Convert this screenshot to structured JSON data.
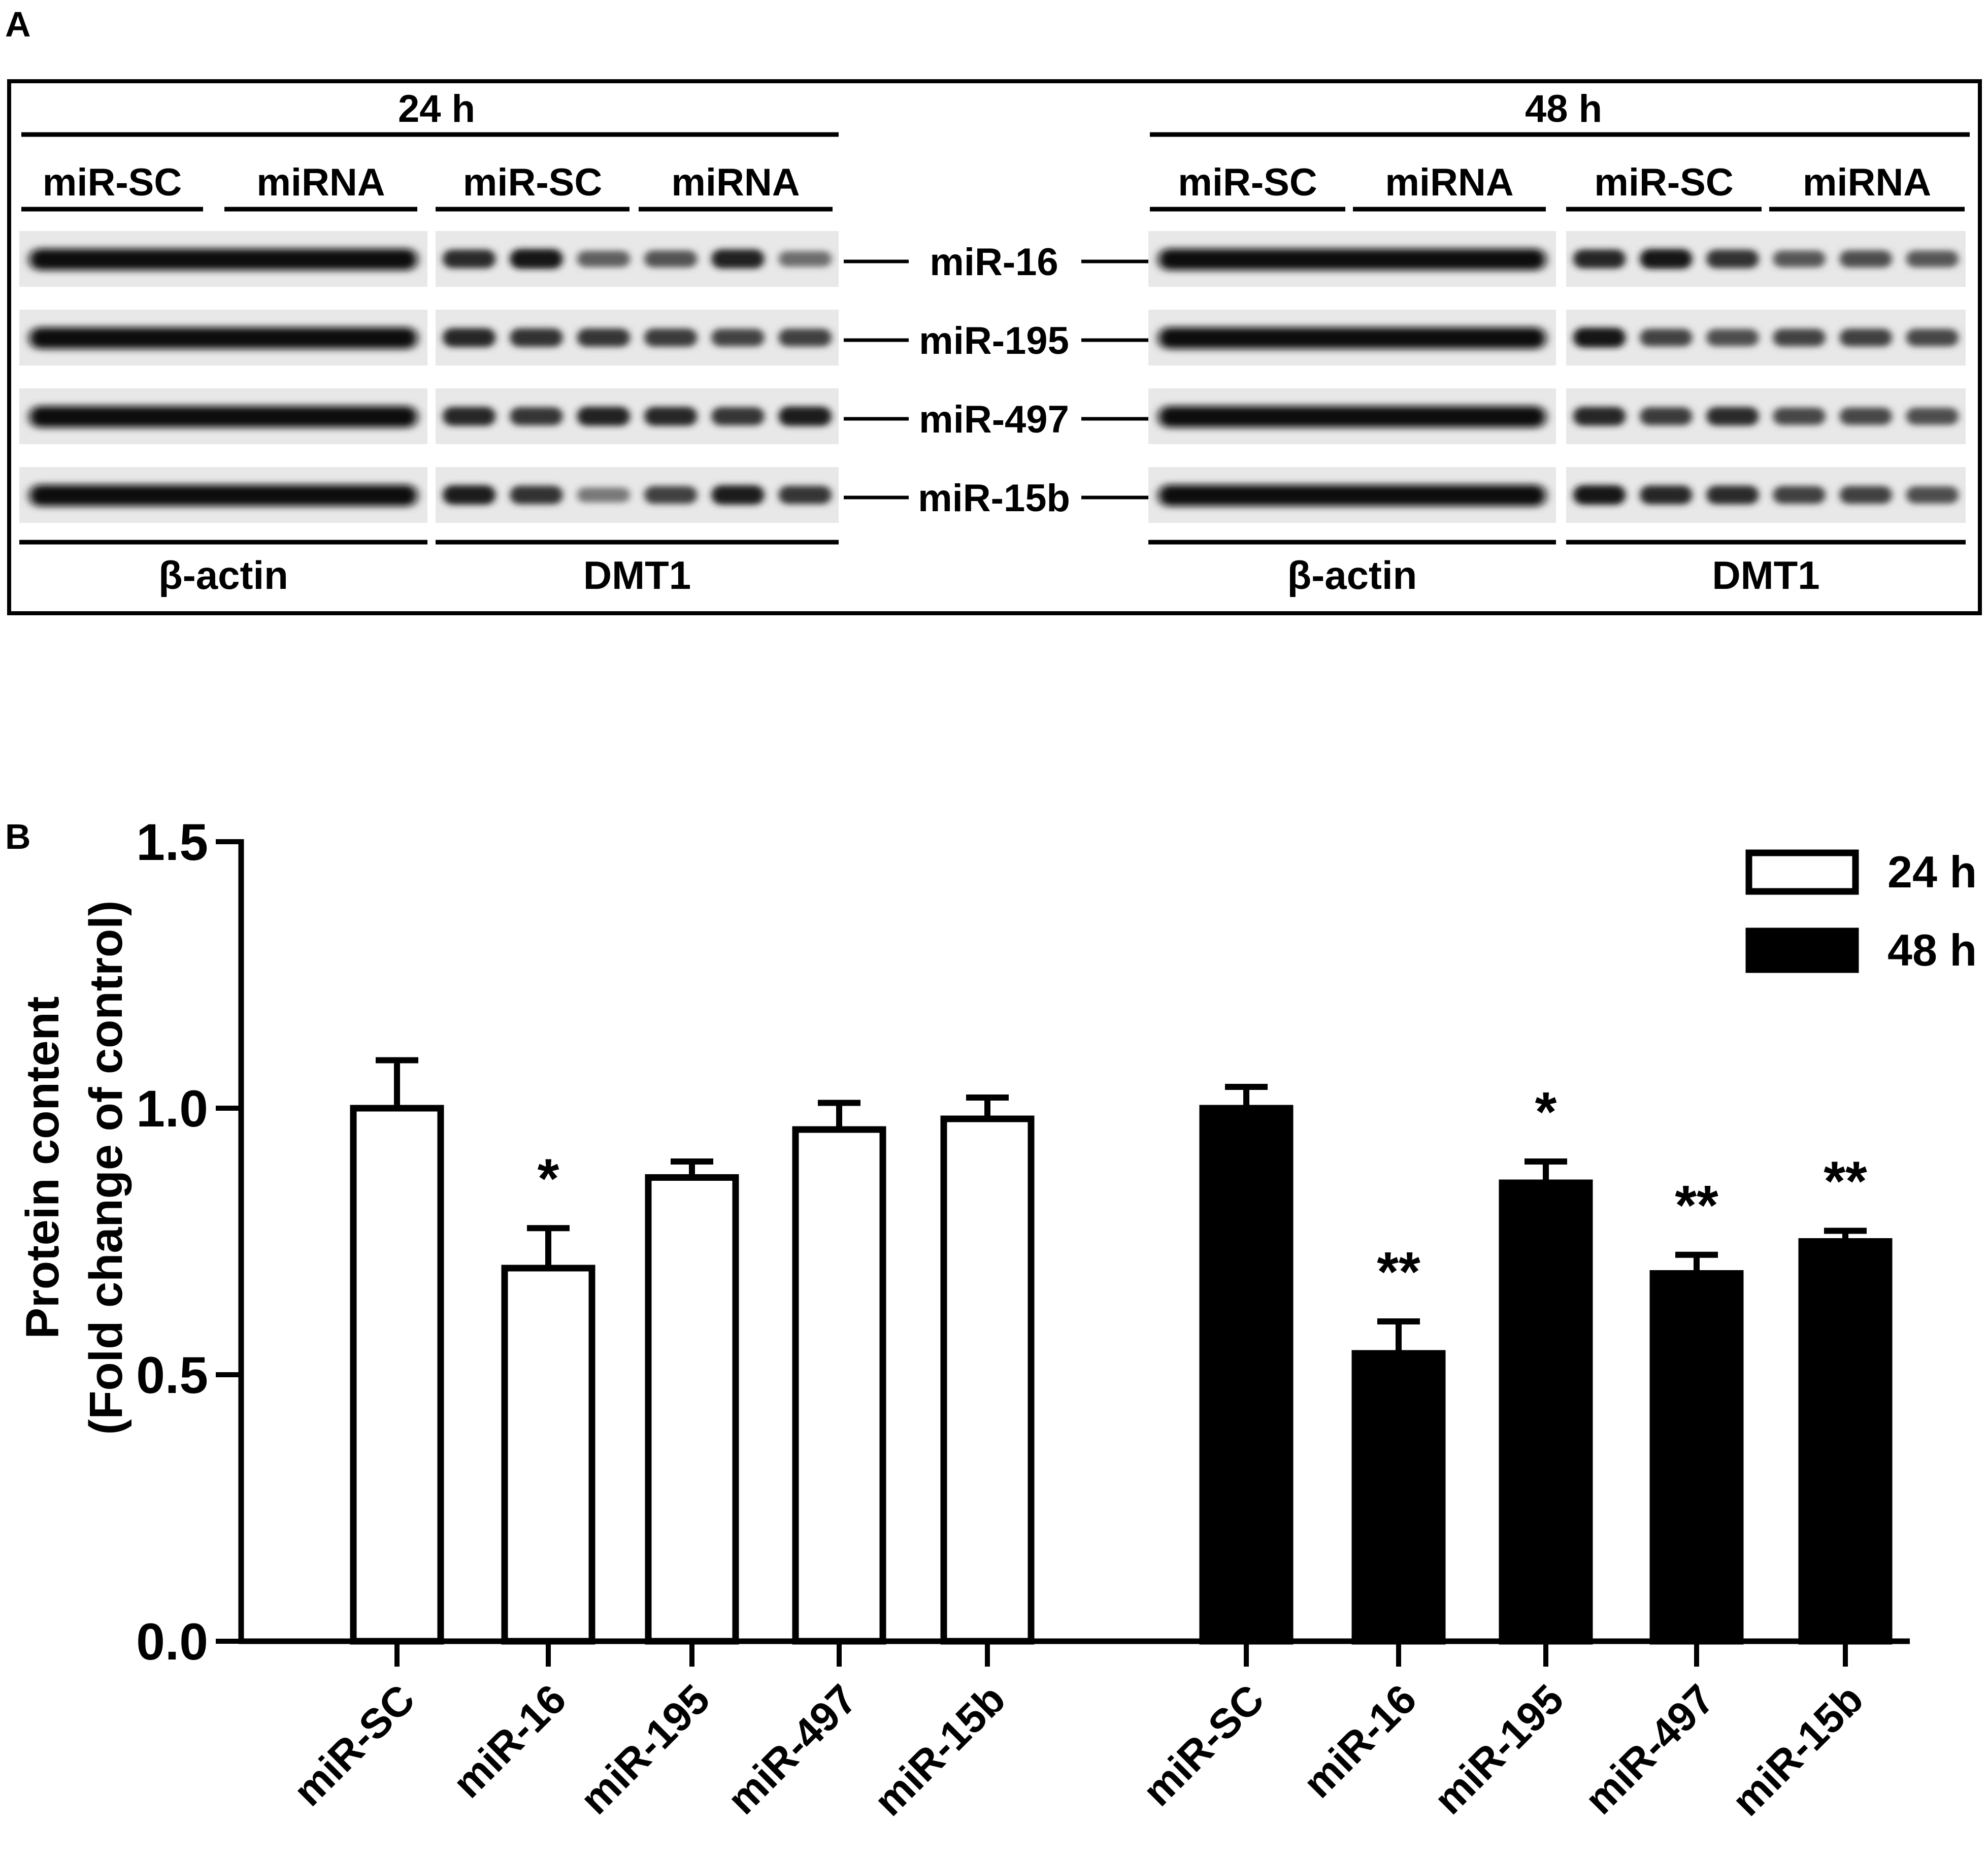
{
  "panel_a": {
    "letter": "A",
    "left_time": "24 h",
    "right_time": "48 h",
    "group_labels": [
      "miR-SC",
      "miRNA",
      "miR-SC",
      "miRNA",
      "miR-SC",
      "miRNA",
      "miR-SC",
      "miRNA"
    ],
    "blot_rows": [
      {
        "label": "miR-16",
        "left_dmt1": [
          0.82,
          0.95,
          0.55,
          0.62,
          0.88,
          0.48
        ],
        "right_dmt1": [
          0.85,
          0.95,
          0.8,
          0.6,
          0.65,
          0.6
        ]
      },
      {
        "label": "miR-195",
        "left_dmt1": [
          0.85,
          0.8,
          0.78,
          0.75,
          0.7,
          0.72
        ],
        "right_dmt1": [
          0.95,
          0.7,
          0.65,
          0.7,
          0.72,
          0.68
        ]
      },
      {
        "label": "miR-497",
        "left_dmt1": [
          0.85,
          0.78,
          0.88,
          0.85,
          0.78,
          0.9
        ],
        "right_dmt1": [
          0.85,
          0.75,
          0.82,
          0.68,
          0.68,
          0.65
        ]
      },
      {
        "label": "miR-15b",
        "left_dmt1": [
          0.9,
          0.8,
          0.42,
          0.72,
          0.9,
          0.78
        ],
        "right_dmt1": [
          0.92,
          0.85,
          0.82,
          0.72,
          0.72,
          0.65
        ]
      }
    ],
    "bottom_labels": [
      "β-actin",
      "DMT1",
      "β-actin",
      "DMT1"
    ]
  },
  "chart_data": {
    "type": "bar",
    "panel_letter": "B",
    "ylabel": "Protein content",
    "ylabel2": "(Fold change of control)",
    "ylim": [
      0,
      1.5
    ],
    "yticks": [
      "0.0",
      "0.5",
      "1.0",
      "1.5"
    ],
    "legend_position": "top-right",
    "series": [
      {
        "name": "24 h",
        "fill": "#ffffff",
        "categories": [
          "miR-SC",
          "miR-16",
          "miR-195",
          "miR-497",
          "miR-15b"
        ],
        "values": [
          1.0,
          0.7,
          0.87,
          0.96,
          0.98
        ],
        "errors": [
          0.09,
          0.075,
          0.03,
          0.05,
          0.04
        ],
        "significance": [
          "",
          "*",
          "",
          "",
          ""
        ]
      },
      {
        "name": "48 h",
        "fill": "#000000",
        "categories": [
          "miR-SC",
          "miR-16",
          "miR-195",
          "miR-497",
          "miR-15b"
        ],
        "values": [
          1.0,
          0.54,
          0.86,
          0.69,
          0.75
        ],
        "errors": [
          0.04,
          0.06,
          0.04,
          0.035,
          0.02
        ],
        "significance": [
          "",
          "**",
          "*",
          "**",
          "**"
        ]
      }
    ]
  }
}
